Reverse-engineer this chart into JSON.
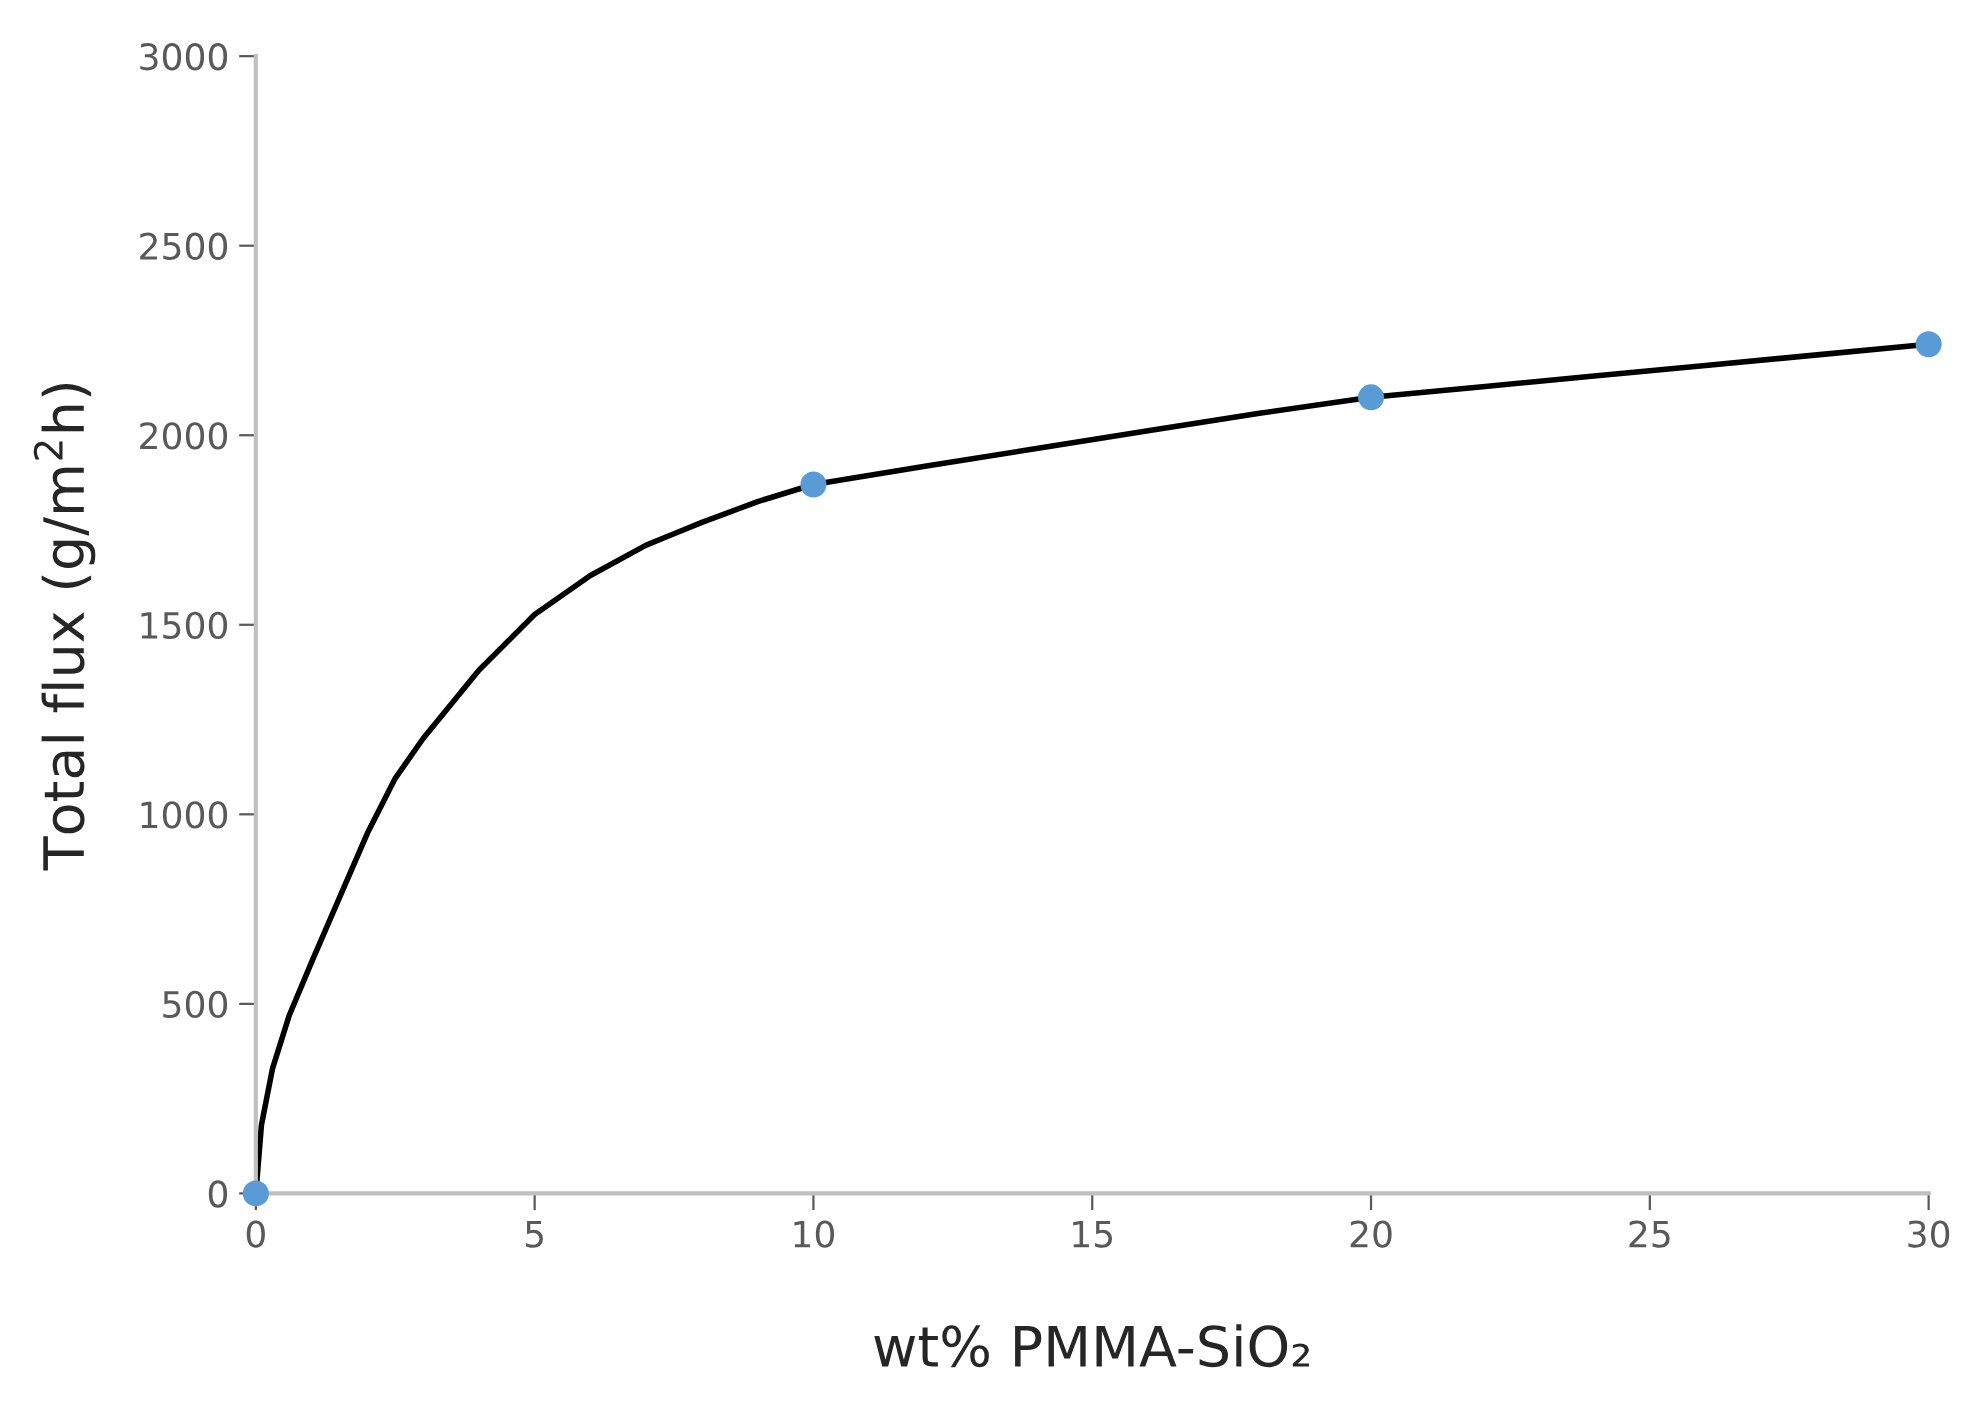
{
  "chart_data": {
    "type": "scatter",
    "xlabel": "wt% PMMA-SiO₂",
    "ylabel": "Total flux (g/m$^{2}$h)",
    "xlim": [
      0,
      30
    ],
    "xticks": [
      0,
      5,
      10,
      15,
      20,
      25,
      30
    ],
    "ylim": [
      0,
      3000
    ],
    "yticks": [
      0,
      500,
      1000,
      1500,
      2000,
      2500,
      3000
    ],
    "grid": false,
    "legend": false,
    "series": [
      {
        "type": "line",
        "color": "#000000",
        "marker": "none",
        "line_style": "solid",
        "x": [
          0,
          0.1,
          0.3,
          0.6,
          1,
          1.5,
          2,
          2.5,
          3,
          4,
          5,
          6,
          7,
          7.5,
          8,
          9,
          10,
          12,
          14,
          16,
          18,
          20,
          22,
          24,
          26,
          28,
          30
        ],
        "values": [
          0,
          180,
          330,
          470,
          610,
          780,
          950,
          1095,
          1200,
          1380,
          1527,
          1630,
          1710,
          1740,
          1770,
          1825,
          1870,
          1918,
          1965,
          2012,
          2058,
          2100,
          2128,
          2156,
          2184,
          2212,
          2240
        ]
      },
      {
        "color": "#5b9bd5",
        "marker": "circle",
        "x": [
          0,
          10,
          20,
          30
        ],
        "values": [
          0,
          1870,
          2100,
          2240
        ]
      }
    ]
  }
}
